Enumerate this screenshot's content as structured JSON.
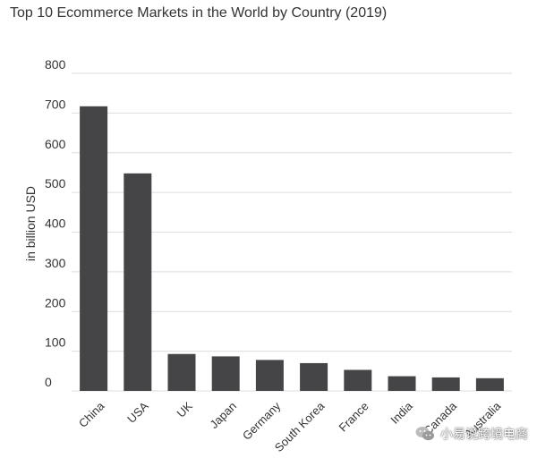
{
  "chart_data": {
    "type": "bar",
    "title": "Top 10 Ecommerce Markets in the World by Country (2019)",
    "ylabel": "in billion USD",
    "xlabel": "",
    "categories": [
      "China",
      "USA",
      "UK",
      "Japan",
      "Germany",
      "South Korea",
      "France",
      "India",
      "Canada",
      "Australia"
    ],
    "values": [
      717,
      548,
      93,
      87,
      78,
      70,
      53,
      37,
      34,
      32
    ],
    "ylim": [
      0,
      800
    ],
    "yticks": [
      0,
      100,
      200,
      300,
      400,
      500,
      600,
      700,
      800
    ],
    "grid": true,
    "bar_color": "#454447"
  },
  "watermark": {
    "text": "小易说跨境电商",
    "icon": "wechat-icon"
  }
}
